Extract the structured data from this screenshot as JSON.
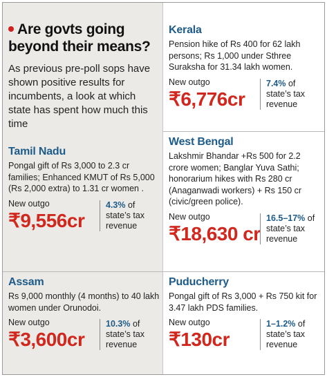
{
  "headline": "Are govts going beyond their means?",
  "intro": "As previous pre-poll sops have shown positive results for incumbents, a look at which state has spent how much this time",
  "outgo_label": "New outgo",
  "share_suffix_1": "of",
  "share_suffix_2": "state’s tax",
  "share_suffix_3": "revenue",
  "colors": {
    "state": "#1d5b8a",
    "amount": "#d0281f",
    "bullet": "#d02020",
    "left_bg": "#eceae6"
  },
  "states": [
    {
      "name": "Tamil Nadu",
      "description": "Pongal gift of Rs 3,000 to 2.3 cr families; Enhanced KMUT of Rs 5,000 (Rs 2,000 extra) to 1.31 cr women .",
      "amount": "₹9,556cr",
      "percent": "4.3%"
    },
    {
      "name": "Assam",
      "description": "Rs 9,000 monthly (4 months) to 40 lakh women under Orunodoi.",
      "amount": "₹3,600cr",
      "percent": "10.3%"
    },
    {
      "name": "Kerala",
      "description": "Pension hike of Rs 400 for 62 lakh persons; Rs 1,000 under Sthree Suraksha for 31.34 lakh women.",
      "amount": "₹6,776cr",
      "percent": "7.4%"
    },
    {
      "name": "West Bengal",
      "description": "Lakshmir Bhandar +Rs 500 for 2.2 crore women; Banglar Yuva Sathi; honorarium hikes with Rs 280 cr (Anaganwadi workers) + Rs 150 cr (civic/green police).",
      "amount": "₹18,630 cr",
      "percent": "16.5–17%"
    },
    {
      "name": "Puducherry",
      "description": "Pongal gift of Rs 3,000 + Rs 750 kit for 3.47 lakh PDS families.",
      "amount": "₹130cr",
      "percent": "1–1.2%"
    }
  ]
}
